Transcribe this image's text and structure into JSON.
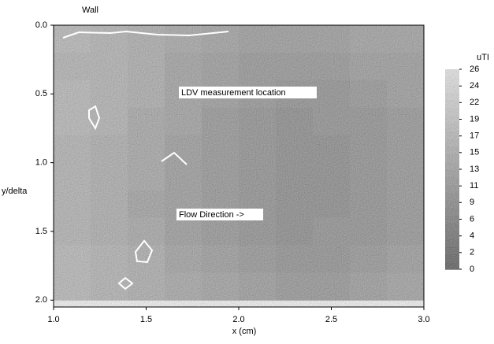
{
  "chart_data": {
    "type": "heatmap",
    "top_label": "Wall",
    "xlabel": "x (cm)",
    "ylabel": "y/delta",
    "colorbar_label": "uTI",
    "annotations": [
      "LDV measurement location",
      "Flow Direction ->"
    ],
    "x": [
      1.1,
      1.3,
      1.5,
      1.7,
      1.9,
      2.1,
      2.3,
      2.5,
      2.7,
      2.9
    ],
    "y": [
      0.1,
      0.3,
      0.5,
      0.7,
      0.9,
      1.1,
      1.3,
      1.5,
      1.7,
      1.9
    ],
    "z": [
      [
        17,
        16,
        15,
        14,
        13,
        12,
        12,
        12,
        13,
        13
      ],
      [
        16,
        16,
        15,
        13,
        12,
        11,
        11,
        11,
        12,
        12
      ],
      [
        17,
        16,
        15,
        13,
        12,
        11,
        10,
        10,
        11,
        12
      ],
      [
        17,
        16,
        14,
        13,
        11,
        10,
        9,
        10,
        10,
        11
      ],
      [
        16,
        15,
        14,
        12,
        11,
        10,
        9,
        9,
        10,
        11
      ],
      [
        16,
        15,
        14,
        12,
        11,
        10,
        9,
        9,
        10,
        11
      ],
      [
        16,
        15,
        13,
        12,
        11,
        10,
        9,
        9,
        10,
        11
      ],
      [
        16,
        15,
        14,
        12,
        11,
        10,
        9,
        10,
        10,
        11
      ],
      [
        17,
        16,
        15,
        13,
        12,
        11,
        10,
        10,
        11,
        12
      ],
      [
        17,
        16,
        15,
        14,
        13,
        12,
        11,
        11,
        12,
        13
      ]
    ],
    "xlim": [
      1.0,
      3.0
    ],
    "ylim": [
      0,
      2.05
    ],
    "y_inverted": true,
    "xticks": [
      {
        "value": 1.0,
        "label": "1.0"
      },
      {
        "value": 1.5,
        "label": "1.5"
      },
      {
        "value": 2.0,
        "label": "2.0"
      },
      {
        "value": 2.5,
        "label": "2.5"
      },
      {
        "value": 3.0,
        "label": "3.0"
      }
    ],
    "yticks": [
      {
        "value": 0.0,
        "label": "0.0"
      },
      0.5,
      {
        "value": 1.0,
        "label": "1.0"
      },
      1.5,
      {
        "value": 2.0,
        "label": "2.0"
      }
    ],
    "clim": [
      0,
      26
    ],
    "cticks": [
      26,
      {
        "value": 23.83,
        "label": "24"
      },
      {
        "value": 21.67,
        "label": "22"
      },
      {
        "value": 19.5,
        "label": "19"
      },
      {
        "value": 17.33,
        "label": "17"
      },
      {
        "value": 15.17,
        "label": "15"
      },
      13,
      {
        "value": 10.83,
        "label": "11"
      },
      {
        "value": 8.67,
        "label": "9"
      },
      {
        "value": 6.5,
        "label": "6"
      },
      {
        "value": 4.33,
        "label": "4"
      },
      {
        "value": 2.17,
        "label": "2"
      },
      0
    ]
  }
}
